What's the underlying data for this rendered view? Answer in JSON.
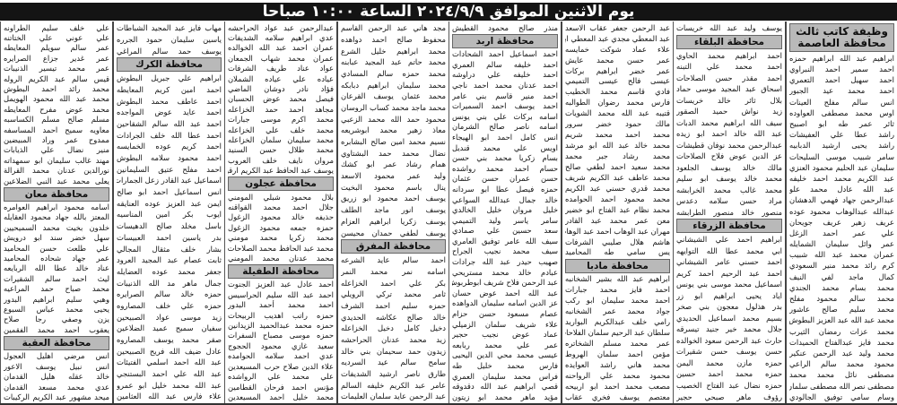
{
  "banner": "يوم الاثنين الموافق ٢٠٢٤/٩/٩ الساعة ١٠:٠٠ صباحا",
  "columns": [
    {
      "segments": [
        {
          "heading": "وظيفة كاتب ثالث",
          "subheading": "محافظة العاصمة",
          "names": [
            "ابراهيم عبد الله ابراهيم حمزه",
            "احمد سمير احمد النبراوي",
            "احمد سهيل احمد التعمري",
            "احمد محمد عيد الجبور",
            "انس سالم مفلح العينات",
            "اوس محمد مصطفى العواوده",
            "ثائر عمر طه ابو اصبيح",
            "راشد عطا علي العفيشات",
            "راشد يحيى ارشيد الدبابيه",
            "سامر شبيب موسى السليحات",
            "سليمان عبد الحليم محمود العنزي",
            "عبد الكريم محمد احمد خليفه",
            "عبد الله عادل محمد علو",
            "عبدالرحمن جهاد فهمي الدهشان",
            "عبدالله عبدالوهاب محمود عوده",
            "عريف زهير عريف جويحان",
            "علي عمر احمد الزغل",
            "عمر وائل سليمان الشمايله",
            "عمران محمد عبد الله شبيب",
            "كرم رائد محمد منير السعودي",
            "كمال ماجد لفي النيف",
            "محمد بسام محمد الجندي",
            "محمد سالم محمود مفلح",
            "محمد سليم صالح عاشور",
            "محمد عبد الله عبد العزيز البطوش",
            "محمد عزات رمضان الثيرب",
            "محمد فايز عبدالفتاح الحميدات",
            "محمد وليد عبد الرحمن عنكير",
            "محمود محمد سالم الراعي",
            "مصطفى نائل محمد محمد",
            "مصطفى نصر الله مصطفى سلمان",
            "وسام سامي توفيق الجالودي"
          ]
        }
      ]
    },
    {
      "segments": [
        {
          "names": [
            "يوسف وليد عبد الله خريسات"
          ]
        },
        {
          "heading": "محافظة البلقاء",
          "names": [
            "احمد ابراهيم محمد الحاوي",
            "احمد محمد علي التبنه",
            "احمد مقذر حسن الصلاحات",
            "اسحاق عبد المجيد موسى حماد",
            "بلال ثائر خالد خريسات",
            "زيد نواش حميد الصقور",
            "سيف الله ابراهيم محمد الدبات",
            "عبد الله خالد احمد ابو زيده",
            "عبدالرحمن محمد نوفان قطيشات",
            "عز الدين عوض فلاح الصلاحات",
            "مالك خالد يوسف الجلعود",
            "محمد خالد يوسف ابو سليم",
            "محمد غالب محمد الخرابشه",
            "مراد حسن سلامه دعدس",
            "منصور خالد منصور الطرابشه"
          ]
        },
        {
          "heading": "محافظة الزرقاء",
          "names": [
            "ابراهيم احمد علي الشيشاني",
            "ابي محمد عطا الله التوايهه",
            "احمد حسني عامر الشيشاني",
            "احمد عبد الرحيم احمد كريم",
            "اسماعيل محمد موسى بني يونس",
            "اياد يحيى ابراهيم ابو زر",
            "بدر هذلول معجون بني صخر",
            "بسيم محمد اسماعيل الحديدي",
            "جلال محمد خير جنيد تيسرقه",
            "حارث عبد الرحمن سعود الخوالده",
            "حسن يوسف حسن شقيرات",
            "حمزه مازن محمد اليمن",
            "حمزه محمد احمد حسين",
            "حمزه نضال عبد الفتاح الخصيب",
            "رؤوف ماهر صبحي حجير"
          ]
        }
      ]
    },
    {
      "segments": [
        {
          "names": [
            "عبد الرحمن جعفر عقاب الاسعد",
            "عبد المعطي مجدي عبد المعطي ابو الحيات",
            "علاء عماد شوكت خمايسه",
            "عمر حسن محمد عايش",
            "عمر خضر ابراهيم بركات",
            "عيسى فالح عيسى التميمي",
            "فادي قاسم محمد الخطيب",
            "فارس محمد رضوان الطوالبه",
            "قتيبه عبد الله محمد الشويات",
            "مالك حمود خضر سرور",
            "محمد احمد محمد شريم",
            "محمد خالد عبد الله ابو مرشد",
            "محمد رشاد جبر محمد",
            "محمد سعيد احمد لطفي صالح",
            "محمد عاطف عبد الكريم شريف",
            "محمد قدري حسني عبد الكريم",
            "محمد محمود احمد الحوامده",
            "محمد نظام عبد الفتاح ابو خضير",
            "معن عمر محمد عبد القادر",
            "مهران عبد الوهاب احمد عبد الوهاب",
            "هاشم هلال صليبي الشرفات",
            "يس سامي طه المحاميد"
          ]
        },
        {
          "heading": "محافظة مادبا",
          "names": [
            "ابراهيم عبد الله بشير الشخانبه",
            "احمد فايز محمد جبارات",
            "احمد محمد سليمان ابو ركب",
            "جواد محمد عمر الشخانبه",
            "رامي خلف عبدالكريم البواريد",
            "سلطان عبد الرحيم سلمان الفلاحات",
            "عمر محمد مسلم الشخاتره",
            "مؤمن احمد سلمان الهروط",
            "محمد هاني راشد العوايده",
            "محمود محمد علي الرواحنه",
            "مصعب محمد احمد ابو اربيحه",
            "معتصم يوسف فخري عقاب"
          ]
        }
      ]
    },
    {
      "segments": [
        {
          "names": [
            "منذر صالح محمود القطيش"
          ]
        },
        {
          "heading": "محافظة اربد",
          "names": [
            "احمد اسماعيل احمد الشحادات",
            "احمد خليفه سالم العمري",
            "احمد خليفه علي دراوشه",
            "احمد عدنان محمد احمد ناجي",
            "احمد منير قاسم بني عامر",
            "احمد يوسف احمد السميرات",
            "اسامه بركات علي بني يونس",
            "اسامه ناصر صالح الشرمان",
            "انس كامل احمد ابو الهيجاء",
            "اويس علي محمد قنديل",
            "بسام زكريا محمد بني حسن",
            "حسام احمد محمد رواشده",
            "حسن عمران حسن عثمان",
            "حمزه فيصل عطا ابو سردانه",
            "خالد جمال عبدالله السواعي",
            "خليل مروان خليل الخالدي",
            "سامر ياسر وليد التميمي",
            "سعد حسين علي صمادي",
            "سيف الله عامر توفيق العامري",
            "سيف محمد نجيب الجراح",
            "صهيب حيدر عبد الله جرادات",
            "عبادم خالد محمد مستريحي",
            "عبد الرحمن فلاح شريف ابوطربوش",
            "عبد الله احمد عوض حسان",
            "عز الدين اسامه سليمان الدواهده",
            "عصام مسعود حسن حزام",
            "علاء شريف سلمان الزميلي",
            "عماد عوض نجيب حجير",
            "عمر علي محمد ربابعه",
            "عيسى محمد محي الدين اليحيى",
            "فارس محمد خليل طه",
            "فراس محمد سليمان العمري",
            "قصي ابراهيم عبد الله دقدوقه",
            "مؤيد ماهر محمد ابو زيتون"
          ]
        }
      ]
    },
    {
      "segments": [
        {
          "names": [
            "مجد هاني عبد الرحمن القاسم",
            "محفوظ صالح احمد دواهده",
            "محمد ابراهيم خليل الشرع",
            "محمد حاتم عبد المجيد عبابنه",
            "محمد حمزه سالم المسادي",
            "محمد سليمان ابراهيم دبابكه",
            "محمد عثمان يوسف القرعان",
            "محمد ماجد محمد كساب الروسان",
            "محمود حمد الله محمد الزعبي",
            "معاذ زهير محمد ابوشريعه",
            "نسيم محمد امين صالح البشابره",
            "نضال محمد حمد البشتاوي",
            "همام رشاد عمر ابو كشك",
            "وليد عمر محمود الاسعد",
            "ينال باسم محمود البخيت",
            "يوسف احمد محمود ابو زريق",
            "يوسف انور ماجد الطلف",
            "يوسف زكريا ابراهيم العزام",
            "يوسف لطفي حمدان محيسن"
          ]
        },
        {
          "heading": "محافظة المفرق",
          "names": [
            "احمد سالم عايد الشرعه",
            "اسامه نمر محمد النمر",
            "بكر علي احمد الخزاعله",
            "ثامر محمد تركي الرويلي",
            "حمزه سليم احمد الشرف",
            "خالد صالح عكاشه الحديدي",
            "دخيل كامل دخيل الخزاعله",
            "زيد محمد عدنان الحراحشه",
            "زيدون حمد سحيمان بني خالد",
            "سامح سالم عيد السرديه",
            "طارق ناصر ارشيد الشديفات",
            "عامر عبد الكريم خليفه السالم",
            "عبد الرحمن عايد سلمان العليمات"
          ]
        }
      ]
    },
    {
      "segments": [
        {
          "names": [
            "عبدالرحمن عبد عواد الحراحشه",
            "عدي ابراهيم سلامه الشديفات",
            "عمران احمد عبد الله الخوالده",
            "عمران محمد شهاب الجمعان",
            "عواد عناد طريف الشرفات",
            "عياده علي عياده الشملان",
            "فؤاد نادر دوشان الماضي",
            "فيصل محمد عوض الحسبان",
            "مجاهد احمد حمد الخزاعله",
            "محمد اكرم موسى جبارات",
            "محمد خلف علي الخزاعله",
            "محمد سليمان سلمان الخزاعله",
            "محمد طلال حسن السنيد",
            "مروان نايف خلف العروب",
            "يوسف عبد الحافظ عبد الكريم ارقيبات"
          ]
        },
        {
          "heading": "محافظة عجلون",
          "names": [
            "بلال محمود شبلي المومني",
            "جلال احمد محمد القواقنه",
            "حذيفه خالد محمود الزغول",
            "حمزه جمعه محمود الزغول",
            "محمد زكريا محمد مومني",
            "محمد عبد الحافظ محمد الصلاحات",
            "محمد عدنان محمد المومني"
          ]
        },
        {
          "heading": "محافظة الطفيلة",
          "names": [
            "احمد عادل عبد العزيز الجنوت",
            "احمد عبد الله سليم الحراسيس",
            "احمد محمد أحمد البدور",
            "حمزه راتب اهديب الربيحات",
            "حمزه محمد عبدالحميد الزيدانين",
            "حمزه موسى مصباح السفرات",
            "سعيد غازي محمود الحجوج",
            "عدي احمد سلامه الحوامده",
            "علاء الدين صلاح حرب المسيعدين",
            "علي محمد علي الرواشده",
            "مؤنس احمد فرحان القطامين",
            "محمد خليل احمد المسيعدين"
          ]
        }
      ]
    },
    {
      "segments": [
        {
          "names": [
            "مهاب فايز عبد المجيد الشباطات",
            "ياسين سليمان حمود الجرره",
            "يوسف حمد سالم المراغي"
          ]
        },
        {
          "heading": "محافظة الكرك",
          "names": [
            "ابراهيم علي جبريل البطوش",
            "احمد امين كريم المعايطه",
            "احمد عاطف محمد البطوش",
            "احمد عايد عوض المواجده",
            "احمد عبد الله سالم الشقاحين",
            "احمد عطا الله خلف الجرادات",
            "احمد كريم عوده الخمايسه",
            "احمد محمود سلامه البطوش",
            "احمد مفلح عتيق السليمانين",
            "اسماعيل عبد القادر زعل الجمارات",
            "انس اسماعيل احمد ابو صالح",
            "ايمن عبد العزيز عوده العنايقه",
            "ايوب بكر امين المناسيه",
            "باسل مخلد صالح الدهيسات",
            "بدر ياسين احمد العبيسات",
            "بشار خلف مثقال المجالي",
            "ثابت عصام عبد المجيد العرود",
            "جعفر محمد عوده العضايله",
            "جمال ماهر مد الله الذنيبات",
            "حمزه خالد سالم الصرايره",
            "حمزه علي خلف المصاروه",
            "زيد موسى عواد الصبيحين",
            "سفيان سميح عميد الضلاعين",
            "صقر محمد يوسف المصاروه",
            "عادل ضيف الله فريح الصبيحين",
            "عبد الله احمد اسلمي الفتيئات",
            "عبد الله علي احمد البستنجي",
            "عبد الله محمد خليل ابو عمرو",
            "علاء فارس عبد الله العثامين"
          ]
        }
      ]
    },
    {
      "segments": [
        {
          "names": [
            "علي خلف سليم الطراونه",
            "علي عوني علي الختاتنه",
            "عمر سالم سويلم المعايطه",
            "عمر غدير جزاع الصرايره",
            "عمر محمد تيسير الذنيبات",
            "قيس سالم عبد الكريم الروله",
            "محمد رائد احمد البطوش",
            "محمد عبد الله محمود الهويمل",
            "محمد عوض مفرح المعايطه",
            "مسلم صالح مسلم الكساسبه",
            "معاويه سميح احمد المساسفه",
            "ممدوح عمر وراد المبيضين",
            "منير نضال علي الذيابات",
            "مهند غالب سليمان ابو سمهداته",
            "نورالدين عدنان محمد القرالة",
            "يعلى محمد عبد النبي الضلاعين"
          ]
        },
        {
          "heading": "محافظة معان",
          "names": [
            "اسامه محمود ابراهيم العوامره",
            "المعتز بالله جهاد محمود العقايله",
            "خلدون بخيت محمد السميحيين",
            "سهل خضر سند ابو درويش",
            "علي طلعت حسن المحاميد",
            "عمر جهاد شحاده المحاميد",
            "عناد خالد عطا الله الربايعه",
            "ليث احمد سالم الشقيرات",
            "محمد صباح حمد المراعيه",
            "وهبي سليم ابراهيم البدور",
            "يحيى محمد عباس السبوع",
            "يزن وصفي رجا صلاح",
            "يعقوب احمد محمد الفقمين"
          ]
        },
        {
          "heading": "محافظة العقبة",
          "names": [
            "انس مرضي اهليل العجول",
            "انس نبيل يوسف الاعور",
            "خالد عقله هليل القدمان",
            "عدي محمد مسعد القدمان",
            "ميحد مشهور عبد الكريم الركيبات"
          ]
        }
      ]
    }
  ]
}
